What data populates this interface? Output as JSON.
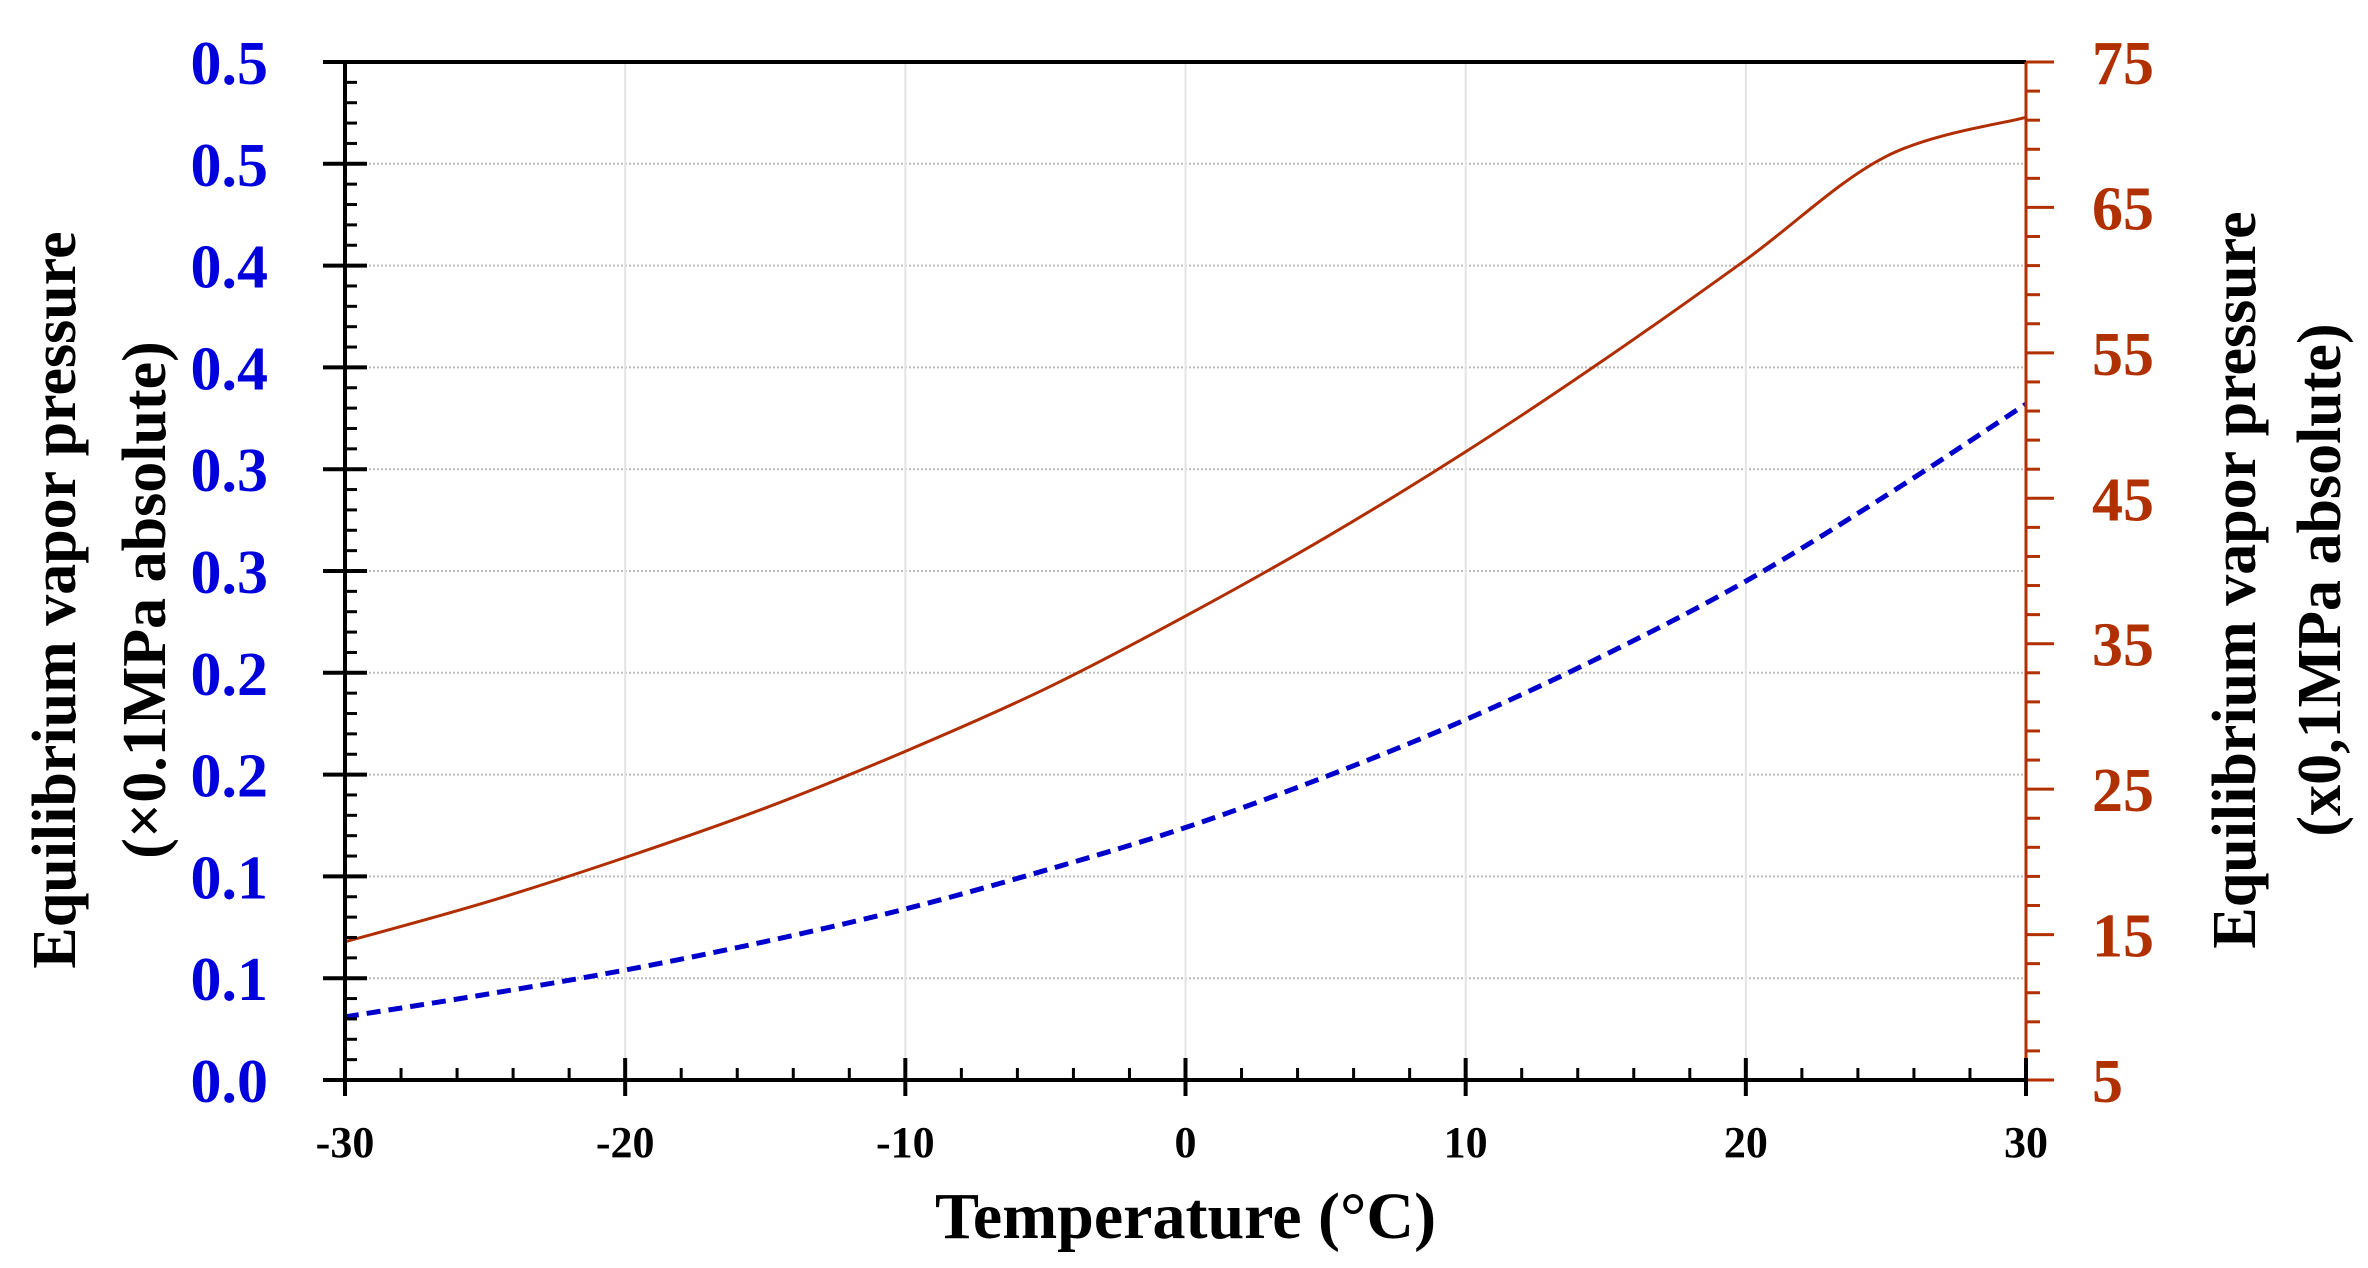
{
  "chart_data": {
    "type": "line",
    "x": [
      -30,
      -25,
      -20,
      -15,
      -10,
      -5,
      0,
      5,
      10,
      15,
      20,
      25,
      30
    ],
    "xlabel": "Temperature (°C)",
    "xlim": [
      -30,
      30
    ],
    "x_ticks": [
      -30,
      -20,
      -10,
      0,
      10,
      20,
      30
    ],
    "x_tick_labels": [
      "-30",
      "-20",
      "-10",
      "0",
      "10",
      "20",
      "30"
    ],
    "ylabel_left": "Equilibrium vapor pressure",
    "ylabel_left_unit": "(×0.1MPa absolute)",
    "ylim_left": [
      0,
      0.5
    ],
    "y_ticks_left_labels": [
      "0.0",
      "0.1",
      "0.1",
      "0.2",
      "0.2",
      "0.3",
      "0.3",
      "0.4",
      "0.4",
      "0.5",
      "0.5"
    ],
    "ylabel_right": "Equilibrium vapor pressure",
    "ylabel_right_unit": "(x0,1MPa absolute)",
    "ylim_right": [
      5,
      75
    ],
    "y_ticks_right": [
      5,
      15,
      25,
      35,
      45,
      55,
      65,
      75
    ],
    "y_ticks_right_labels": [
      "5",
      "15",
      "25",
      "35",
      "45",
      "55",
      "65",
      "75"
    ],
    "grid": true,
    "series": [
      {
        "name": "left-axis series",
        "axis": "left",
        "style": "dashed",
        "color": "#0000CC",
        "values": [
          0.031,
          0.042,
          0.054,
          0.068,
          0.084,
          0.103,
          0.124,
          0.149,
          0.177,
          0.209,
          0.245,
          0.287,
          0.332
        ]
      },
      {
        "name": "right-axis series",
        "axis": "right",
        "style": "solid",
        "color": "#B02E00",
        "values": [
          14.5,
          17.2,
          20.3,
          23.7,
          27.6,
          31.9,
          36.9,
          42.3,
          48.2,
          54.6,
          61.4,
          68.5,
          71.2
        ]
      }
    ],
    "colors": {
      "left_axis": "#0000DD",
      "right_axis": "#B03000",
      "grid": "#BBBBBB"
    }
  }
}
